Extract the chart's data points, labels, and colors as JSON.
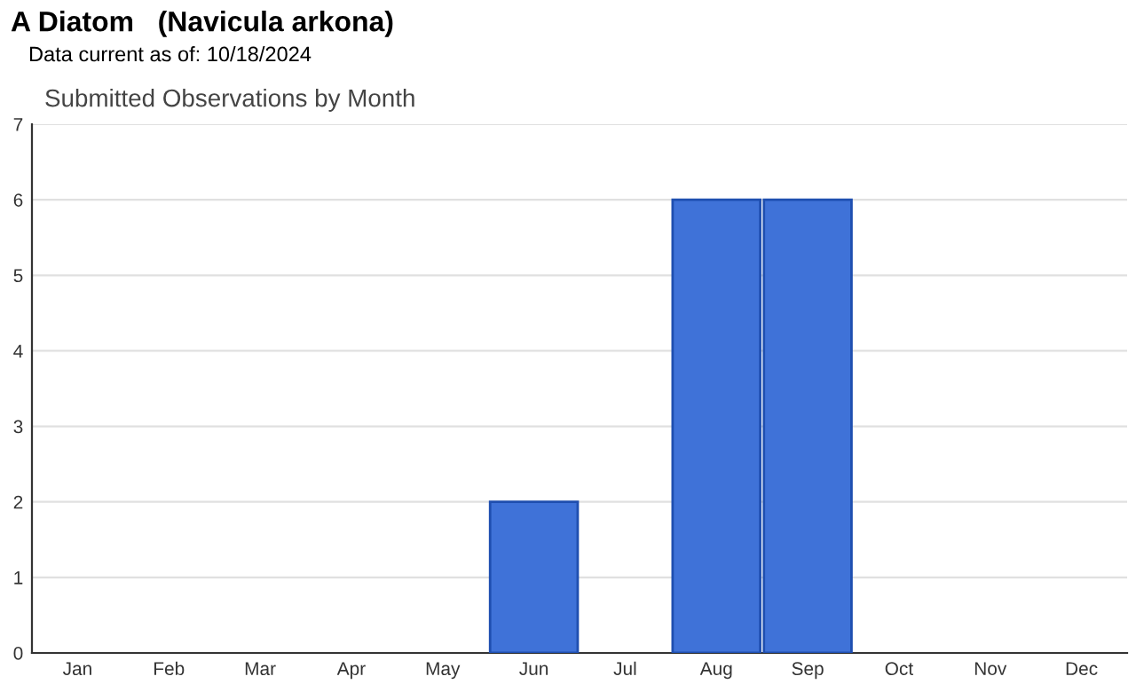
{
  "chart_data": {
    "type": "bar",
    "title": "A Diatom   (Navicula arkona)",
    "subtitle": "Data current as of: 10/18/2024",
    "annotations": [
      "Submitted Observations by Month"
    ],
    "categories": [
      "Jan",
      "Feb",
      "Mar",
      "Apr",
      "May",
      "Jun",
      "Jul",
      "Aug",
      "Sep",
      "Oct",
      "Nov",
      "Dec"
    ],
    "values": [
      0,
      0,
      0,
      0,
      0,
      2,
      0,
      6,
      6,
      0,
      0,
      0
    ],
    "color": "#3f72d8",
    "ylim": [
      0,
      7
    ],
    "yticks": [
      0,
      1,
      2,
      3,
      4,
      5,
      6,
      7
    ],
    "grid": "y"
  }
}
